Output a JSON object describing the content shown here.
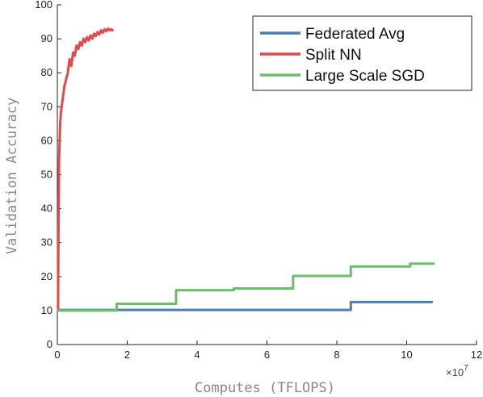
{
  "chart_data": {
    "type": "line",
    "xlabel": "Computes (TFLOPS)",
    "ylabel": "Validation Accuracy",
    "x_exponent_label": "×10",
    "x_exponent_power": "7",
    "xlim": [
      0,
      12
    ],
    "ylim": [
      0,
      100
    ],
    "x_ticks": [
      0,
      2,
      4,
      6,
      8,
      10,
      12
    ],
    "y_ticks": [
      0,
      10,
      20,
      30,
      40,
      50,
      60,
      70,
      80,
      90,
      100
    ],
    "legend_position": "top-right",
    "series": [
      {
        "name": "Federated Avg",
        "color": "#4a7fb0",
        "step": true,
        "x": [
          0,
          8.4,
          8.4,
          10.75
        ],
        "y": [
          10.2,
          10.2,
          12.5,
          12.5
        ]
      },
      {
        "name": "Split NN",
        "color": "#e04a4a",
        "step": false,
        "x": [
          0.02,
          0.03,
          0.05,
          0.08,
          0.1,
          0.15,
          0.2,
          0.25,
          0.3,
          0.35,
          0.4,
          0.45,
          0.5,
          0.55,
          0.6,
          0.65,
          0.7,
          0.75,
          0.8,
          0.85,
          0.9,
          0.95,
          1.0,
          1.05,
          1.1,
          1.15,
          1.2,
          1.25,
          1.3,
          1.35,
          1.4,
          1.45,
          1.5,
          1.55,
          1.6
        ],
        "y": [
          10,
          30,
          55,
          65,
          68,
          72,
          76,
          78,
          80,
          84,
          82,
          86,
          85,
          88,
          87,
          89,
          88,
          90,
          89,
          90.5,
          89.5,
          91,
          90,
          91.5,
          90.8,
          92,
          91.2,
          92.5,
          91.8,
          92.8,
          92.2,
          93,
          92.5,
          92.8,
          92.3
        ]
      },
      {
        "name": "Large Scale SGD",
        "color": "#6abf69",
        "step": true,
        "x": [
          0,
          1.7,
          1.7,
          3.4,
          3.4,
          5.05,
          5.05,
          6.75,
          6.75,
          8.4,
          8.4,
          10.1,
          10.1,
          10.8
        ],
        "y": [
          10,
          10,
          12,
          12,
          16,
          16,
          16.5,
          16.5,
          20.2,
          20.2,
          23,
          23,
          23.8,
          23.8
        ]
      }
    ]
  }
}
